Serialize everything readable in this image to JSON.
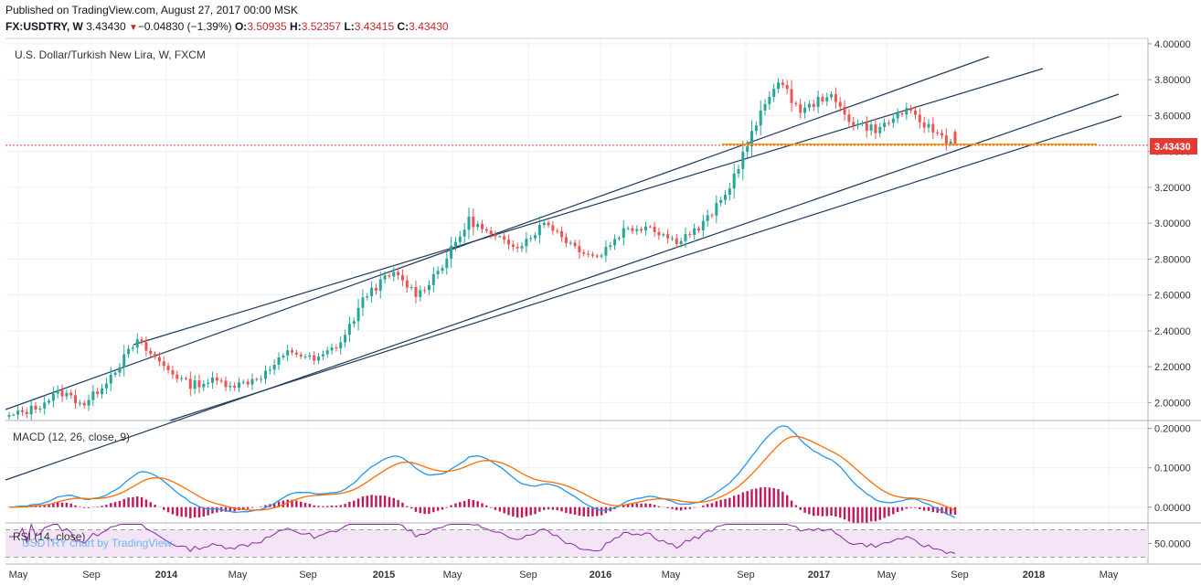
{
  "header": {
    "published": "Published on TradingView.com, August 27, 2017 00:00 MSK",
    "symbol": "FX:USDTRY, W",
    "last": "3.43430",
    "change": "−0.04830 (−1.39%)",
    "o_label": "O:",
    "o_val": "3.50935",
    "h_label": "H:",
    "h_val": "3.52357",
    "l_label": "L:",
    "l_val": "3.43415",
    "c_label": "C:",
    "c_val": "3.43430"
  },
  "panes": {
    "main_title": "U.S. Dollar/Turkish New Lira, W, FXCM",
    "macd_title": "MACD (12, 26, close, 9)",
    "rsi_title": "RSI (14, close)",
    "watermark": "USDTRY chart by TradingView",
    "price_tag": "3.43430"
  },
  "colors": {
    "up": "#26a69a",
    "down": "#ef5350",
    "channel": "#1e3a5f",
    "macd": "#2196f3",
    "signal": "#ff6d00",
    "hist": "#c2185b",
    "rsi": "#8e24aa",
    "rsi_band": "#f3e5f5",
    "support": "#ff9800",
    "last_price": "#e53935"
  },
  "chart_data": [
    {
      "type": "candlestick",
      "title": "U.S. Dollar/Turkish New Lira, W, FXCM",
      "ylim": [
        1.9,
        4.03
      ],
      "y_ticks": [
        "4.00000",
        "3.80000",
        "3.60000",
        "3.40000",
        "3.20000",
        "3.00000",
        "2.80000",
        "2.60000",
        "2.40000",
        "2.20000",
        "2.00000"
      ],
      "x_ticks": [
        {
          "label": "May",
          "bold": false
        },
        {
          "label": "Sep",
          "bold": false
        },
        {
          "label": "2014",
          "bold": true
        },
        {
          "label": "May",
          "bold": false
        },
        {
          "label": "Sep",
          "bold": false
        },
        {
          "label": "2015",
          "bold": true
        },
        {
          "label": "May",
          "bold": false
        },
        {
          "label": "Sep",
          "bold": false
        },
        {
          "label": "2016",
          "bold": true
        },
        {
          "label": "May",
          "bold": false
        },
        {
          "label": "Sep",
          "bold": false
        },
        {
          "label": "2017",
          "bold": true
        },
        {
          "label": "May",
          "bold": false
        },
        {
          "label": "Sep",
          "bold": false
        },
        {
          "label": "2018",
          "bold": true
        },
        {
          "label": "May",
          "bold": false
        }
      ],
      "close_anchors": [
        1.92,
        1.97,
        2.06,
        1.99,
        2.16,
        2.34,
        2.21,
        2.1,
        2.12,
        2.1,
        2.16,
        2.29,
        2.23,
        2.34,
        2.61,
        2.72,
        2.6,
        2.78,
        3.02,
        2.91,
        2.88,
        3.01,
        2.88,
        2.81,
        2.96,
        2.99,
        2.9,
        2.97,
        3.15,
        3.48,
        3.8,
        3.62,
        3.72,
        3.56,
        3.52,
        3.63,
        3.53,
        3.4343
      ],
      "last": {
        "open": 3.50935,
        "high": 3.52357,
        "low": 3.43415,
        "close": 3.4343
      },
      "last_price": 3.4343,
      "support_level": 3.44
    },
    {
      "type": "line",
      "title": "MACD (12, 26, close, 9)",
      "ylim": [
        -0.04,
        0.22
      ],
      "y_ticks": [
        "0.20000",
        "0.10000",
        "0.00000"
      ],
      "series": [
        {
          "values_from": "macd",
          "color": "#2196f3"
        },
        {
          "values_from": "signal",
          "color": "#ff6d00"
        },
        {
          "values_from": "histogram",
          "color": "#c2185b"
        }
      ]
    },
    {
      "type": "line",
      "title": "RSI (14, close)",
      "ylim": [
        20,
        80
      ],
      "y_ticks": [
        "50.0000"
      ],
      "bands": [
        30,
        70
      ],
      "series": [
        {
          "values_from": "rsi",
          "color": "#8e24aa"
        }
      ]
    }
  ]
}
